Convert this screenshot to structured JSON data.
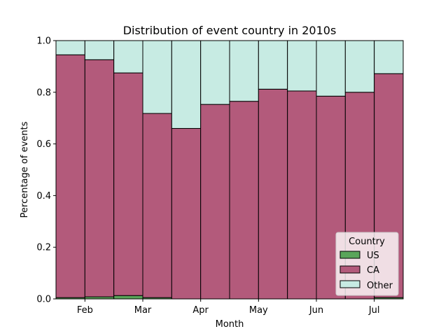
{
  "chart_data": {
    "type": "bar",
    "stacked": true,
    "normalized": true,
    "title": "Distribution of event country in 2010s",
    "xlabel": "Month",
    "ylabel": "Percentage of events",
    "ylim": [
      0,
      1.0
    ],
    "y_ticks": [
      "0.0",
      "0.2",
      "0.4",
      "0.6",
      "0.8",
      "1.0"
    ],
    "x_ticks": [
      "Feb",
      "Mar",
      "Apr",
      "May",
      "Jun",
      "Jul"
    ],
    "bins": 12,
    "series": [
      {
        "name": "US",
        "color": "#5aa55a",
        "values": [
          0.005,
          0.008,
          0.013,
          0.005,
          0.0,
          0.0,
          0.0,
          0.0,
          0.0,
          0.0,
          0.0,
          0.005
        ]
      },
      {
        "name": "CA",
        "color": "#b35a7b",
        "values": [
          0.94,
          0.918,
          0.862,
          0.713,
          0.66,
          0.753,
          0.765,
          0.812,
          0.805,
          0.785,
          0.8,
          0.867
        ]
      },
      {
        "name": "Other",
        "color": "#c7ebe3",
        "values": [
          0.055,
          0.074,
          0.125,
          0.282,
          0.34,
          0.247,
          0.235,
          0.188,
          0.195,
          0.215,
          0.2,
          0.128
        ]
      }
    ],
    "legend": {
      "title": "Country",
      "position": "lower-right",
      "labels": [
        "US",
        "CA",
        "Other"
      ]
    }
  }
}
